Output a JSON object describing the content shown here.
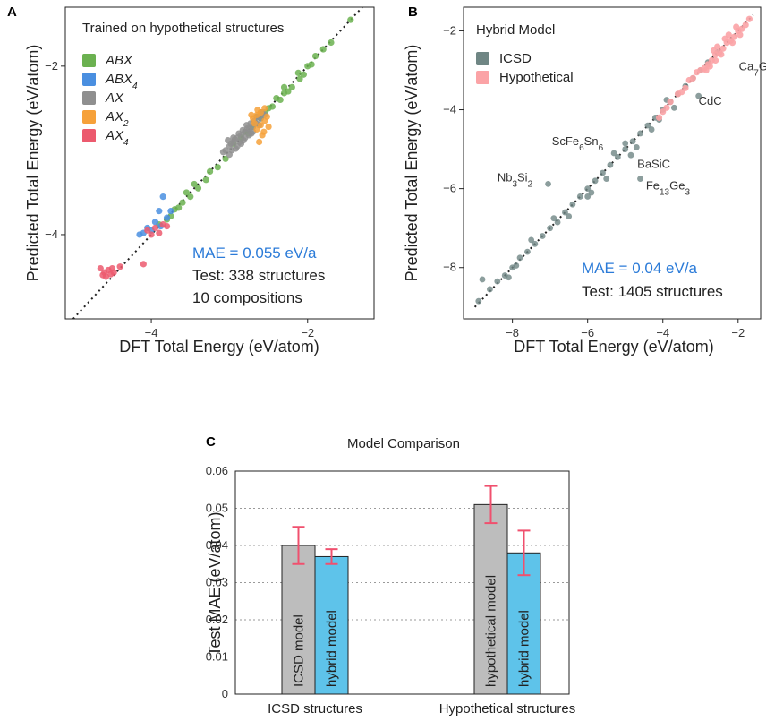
{
  "chart_data": [
    {
      "panel": "A",
      "type": "scatter",
      "title": "Trained on hypothetical structures",
      "xlabel": "DFT Total Energy (eV/atom)",
      "ylabel": "Predicted Total Energy (eV/atom)",
      "xlim": [
        -5.1,
        -1.15
      ],
      "ylim": [
        -5.0,
        -1.3
      ],
      "xticks": [
        {
          "v": -4,
          "label": "−4"
        },
        {
          "v": -2,
          "label": "−2"
        }
      ],
      "yticks": [
        {
          "v": -4,
          "label": "−4"
        },
        {
          "v": -2,
          "label": "−2"
        }
      ],
      "grid": false,
      "legend_position": "top-left",
      "stats": {
        "mae": "MAE = 0.055 eV/a",
        "test": "Test: 338 structures",
        "comp": "10 compositions"
      },
      "series": [
        {
          "name": "ABX",
          "sub": "",
          "color": "#6bb150",
          "points": [
            [
              -1.45,
              -1.45
            ],
            [
              -1.7,
              -1.72
            ],
            [
              -1.8,
              -1.8
            ],
            [
              -1.9,
              -1.88
            ],
            [
              -2.0,
              -2.0
            ],
            [
              -2.05,
              -2.1
            ],
            [
              -2.12,
              -2.08
            ],
            [
              -2.2,
              -2.25
            ],
            [
              -2.3,
              -2.32
            ],
            [
              -2.35,
              -2.4
            ],
            [
              -2.4,
              -2.38
            ],
            [
              -2.45,
              -2.48
            ],
            [
              -2.5,
              -2.5
            ],
            [
              -2.55,
              -2.55
            ],
            [
              -2.6,
              -2.62
            ],
            [
              -2.65,
              -2.6
            ],
            [
              -2.7,
              -2.72
            ],
            [
              -2.75,
              -2.8
            ],
            [
              -2.8,
              -2.78
            ],
            [
              -2.85,
              -2.85
            ],
            [
              -2.95,
              -2.92
            ],
            [
              -3.05,
              -3.1
            ],
            [
              -3.15,
              -3.2
            ],
            [
              -3.25,
              -3.25
            ],
            [
              -3.4,
              -3.45
            ],
            [
              -3.5,
              -3.55
            ],
            [
              -3.55,
              -3.5
            ],
            [
              -3.6,
              -3.62
            ],
            [
              -3.7,
              -3.7
            ],
            [
              -3.75,
              -3.78
            ],
            [
              -3.8,
              -3.82
            ],
            [
              -3.9,
              -3.88
            ],
            [
              -2.3,
              -2.25
            ],
            [
              -2.25,
              -2.3
            ],
            [
              -2.1,
              -2.15
            ],
            [
              -1.95,
              -1.98
            ],
            [
              -2.6,
              -2.55
            ],
            [
              -3.3,
              -3.35
            ],
            [
              -3.45,
              -3.4
            ],
            [
              -3.65,
              -3.68
            ]
          ]
        },
        {
          "name": "ABX",
          "sub": "4",
          "color": "#4a8fe0",
          "points": [
            [
              -3.85,
              -3.55
            ],
            [
              -3.9,
              -3.72
            ],
            [
              -3.95,
              -3.85
            ],
            [
              -4.05,
              -3.92
            ],
            [
              -4.1,
              -3.98
            ],
            [
              -4.15,
              -4.0
            ],
            [
              -3.8,
              -3.8
            ],
            [
              -3.75,
              -3.72
            ],
            [
              -4.0,
              -3.95
            ],
            [
              -3.88,
              -3.9
            ]
          ]
        },
        {
          "name": "AX",
          "sub": "",
          "color": "#8f8f8f",
          "points": [
            [
              -3.05,
              -3.0
            ],
            [
              -3.0,
              -2.95
            ],
            [
              -2.95,
              -2.9
            ],
            [
              -2.9,
              -2.85
            ],
            [
              -2.85,
              -2.82
            ],
            [
              -2.8,
              -2.78
            ],
            [
              -2.75,
              -2.75
            ],
            [
              -2.7,
              -2.72
            ],
            [
              -2.65,
              -2.68
            ],
            [
              -2.6,
              -2.62
            ],
            [
              -2.58,
              -2.55
            ],
            [
              -3.02,
              -2.88
            ],
            [
              -2.98,
              -2.92
            ],
            [
              -2.92,
              -2.98
            ],
            [
              -2.88,
              -2.8
            ],
            [
              -2.82,
              -2.88
            ],
            [
              -2.78,
              -2.7
            ],
            [
              -2.72,
              -2.8
            ],
            [
              -2.68,
              -2.65
            ],
            [
              -3.08,
              -3.02
            ],
            [
              -2.95,
              -2.85
            ],
            [
              -2.85,
              -2.92
            ],
            [
              -2.75,
              -2.82
            ],
            [
              -2.62,
              -2.7
            ],
            [
              -3.0,
              -3.05
            ],
            [
              -2.9,
              -2.95
            ],
            [
              -2.8,
              -2.85
            ],
            [
              -2.7,
              -2.78
            ],
            [
              -2.65,
              -2.6
            ],
            [
              -2.55,
              -2.58
            ],
            [
              -2.93,
              -2.87
            ],
            [
              -2.87,
              -2.9
            ],
            [
              -2.77,
              -2.74
            ],
            [
              -2.83,
              -2.76
            ],
            [
              -2.73,
              -2.68
            ],
            [
              -2.97,
              -3.0
            ]
          ]
        },
        {
          "name": "AX",
          "sub": "2",
          "color": "#f6a13a",
          "points": [
            [
              -2.55,
              -2.5
            ],
            [
              -2.6,
              -2.55
            ],
            [
              -2.65,
              -2.58
            ],
            [
              -2.7,
              -2.62
            ],
            [
              -2.55,
              -2.65
            ],
            [
              -2.6,
              -2.7
            ],
            [
              -2.65,
              -2.75
            ],
            [
              -2.58,
              -2.82
            ],
            [
              -2.62,
              -2.9
            ],
            [
              -2.68,
              -2.68
            ],
            [
              -2.52,
              -2.6
            ],
            [
              -2.64,
              -2.52
            ],
            [
              -2.72,
              -2.58
            ],
            [
              -2.5,
              -2.72
            ],
            [
              -2.56,
              -2.78
            ]
          ]
        },
        {
          "name": "AX",
          "sub": "4",
          "color": "#ec5a6e",
          "points": [
            [
              -4.6,
              -4.45
            ],
            [
              -4.55,
              -4.42
            ],
            [
              -4.5,
              -4.4
            ],
            [
              -4.62,
              -4.48
            ],
            [
              -4.58,
              -4.5
            ],
            [
              -4.52,
              -4.47
            ],
            [
              -4.48,
              -4.45
            ],
            [
              -4.65,
              -4.4
            ],
            [
              -4.4,
              -4.38
            ],
            [
              -4.1,
              -4.35
            ],
            [
              -4.0,
              -4.0
            ],
            [
              -3.95,
              -3.92
            ],
            [
              -3.85,
              -3.88
            ],
            [
              -3.8,
              -3.9
            ],
            [
              -4.05,
              -3.95
            ],
            [
              -3.9,
              -3.98
            ]
          ]
        }
      ]
    },
    {
      "panel": "B",
      "type": "scatter",
      "title": "Hybrid Model",
      "xlabel": "DFT Total Energy (eV/atom)",
      "ylabel": "Predicted Total Energy (eV/atom)",
      "xlim": [
        -9.3,
        -1.4
      ],
      "ylim": [
        -9.3,
        -1.4
      ],
      "xticks": [
        {
          "v": -8,
          "label": "−8"
        },
        {
          "v": -6,
          "label": "−6"
        },
        {
          "v": -4,
          "label": "−4"
        },
        {
          "v": -2,
          "label": "−2"
        }
      ],
      "yticks": [
        {
          "v": -8,
          "label": "−8"
        },
        {
          "v": -6,
          "label": "−6"
        },
        {
          "v": -4,
          "label": "−4"
        },
        {
          "v": -2,
          "label": "−2"
        }
      ],
      "grid": false,
      "legend_position": "top-left",
      "stats": {
        "mae": "MAE = 0.04 eV/a",
        "test": "Test: 1405 structures"
      },
      "series": [
        {
          "name": "ICSD",
          "color": "#6f8684",
          "points": [
            [
              -8.9,
              -8.85
            ],
            [
              -8.8,
              -8.3
            ],
            [
              -8.6,
              -8.55
            ],
            [
              -8.4,
              -8.35
            ],
            [
              -8.2,
              -8.2
            ],
            [
              -8.0,
              -8.0
            ],
            [
              -7.9,
              -7.95
            ],
            [
              -7.8,
              -7.75
            ],
            [
              -7.6,
              -7.6
            ],
            [
              -7.4,
              -7.4
            ],
            [
              -7.2,
              -7.2
            ],
            [
              -7.0,
              -7.0
            ],
            [
              -6.8,
              -6.85
            ],
            [
              -6.6,
              -6.6
            ],
            [
              -6.4,
              -6.4
            ],
            [
              -6.2,
              -6.2
            ],
            [
              -6.0,
              -6.0
            ],
            [
              -5.8,
              -5.8
            ],
            [
              -5.6,
              -5.6
            ],
            [
              -5.4,
              -5.4
            ],
            [
              -5.2,
              -5.2
            ],
            [
              -5.0,
              -5.0
            ],
            [
              -4.8,
              -4.8
            ],
            [
              -4.6,
              -4.6
            ],
            [
              -4.4,
              -4.4
            ],
            [
              -4.2,
              -4.2
            ],
            [
              -4.0,
              -4.0
            ],
            [
              -3.8,
              -3.8
            ],
            [
              -3.6,
              -3.6
            ],
            [
              -3.4,
              -3.4
            ],
            [
              -3.2,
              -3.2
            ],
            [
              -3.0,
              -3.0
            ],
            [
              -2.8,
              -2.8
            ],
            [
              -7.05,
              -5.88
            ],
            [
              -4.85,
              -5.15
            ],
            [
              -4.6,
              -5.75
            ],
            [
              -3.05,
              -3.65
            ],
            [
              -2.55,
              -2.55
            ],
            [
              -5.0,
              -4.85
            ],
            [
              -6.5,
              -6.7
            ],
            [
              -7.5,
              -7.3
            ],
            [
              -5.5,
              -5.75
            ],
            [
              -4.3,
              -4.5
            ],
            [
              -3.7,
              -3.95
            ],
            [
              -6.0,
              -6.2
            ],
            [
              -8.1,
              -8.25
            ],
            [
              -5.3,
              -5.1
            ],
            [
              -4.1,
              -4.25
            ],
            [
              -6.9,
              -6.75
            ],
            [
              -5.9,
              -6.1
            ],
            [
              -4.7,
              -4.95
            ],
            [
              -3.9,
              -3.75
            ]
          ]
        },
        {
          "name": "Hypothetical",
          "color": "#fba3a6",
          "points": [
            [
              -1.7,
              -1.7
            ],
            [
              -1.8,
              -1.85
            ],
            [
              -1.9,
              -1.95
            ],
            [
              -2.0,
              -2.0
            ],
            [
              -2.1,
              -2.15
            ],
            [
              -2.2,
              -2.25
            ],
            [
              -2.3,
              -2.3
            ],
            [
              -2.4,
              -2.45
            ],
            [
              -2.5,
              -2.55
            ],
            [
              -2.6,
              -2.6
            ],
            [
              -2.7,
              -2.75
            ],
            [
              -2.8,
              -2.85
            ],
            [
              -2.9,
              -2.95
            ],
            [
              -3.0,
              -3.0
            ],
            [
              -3.2,
              -3.2
            ],
            [
              -3.4,
              -3.45
            ],
            [
              -3.6,
              -3.6
            ],
            [
              -3.8,
              -3.8
            ],
            [
              -4.0,
              -4.05
            ],
            [
              -2.25,
              -2.1
            ],
            [
              -2.45,
              -2.6
            ],
            [
              -2.65,
              -2.5
            ],
            [
              -2.85,
              -3.0
            ],
            [
              -3.1,
              -3.05
            ],
            [
              -2.35,
              -2.2
            ],
            [
              -2.15,
              -2.3
            ],
            [
              -2.05,
              -1.9
            ],
            [
              -2.55,
              -2.4
            ],
            [
              -2.75,
              -2.9
            ],
            [
              -3.3,
              -3.25
            ],
            [
              -3.5,
              -3.55
            ],
            [
              -3.9,
              -3.95
            ],
            [
              -4.1,
              -4.2
            ],
            [
              -1.95,
              -2.1
            ],
            [
              -2.6,
              -2.75
            ]
          ]
        }
      ],
      "annotations": [
        {
          "base": "Ca",
          "sub": "7",
          "rest": "Ge",
          "x": -1.98,
          "y": -3.0
        },
        {
          "base": "CdC",
          "sub": "",
          "rest": "",
          "x": -3.05,
          "y": -3.88
        },
        {
          "base": "ScFe",
          "sub": "6",
          "rest": "Sn",
          "sub2": "6",
          "x": -6.95,
          "y": -4.9
        },
        {
          "base": "BaSiC",
          "sub": "",
          "rest": "",
          "x": -4.68,
          "y": -5.48
        },
        {
          "base": "Nb",
          "sub": "3",
          "rest": "Si",
          "sub2": "2",
          "x": -8.4,
          "y": -5.82
        },
        {
          "base": "Fe",
          "sub": "13",
          "rest": "Ge",
          "sub2": "3",
          "x": -4.45,
          "y": -6.02
        }
      ]
    },
    {
      "panel": "C",
      "type": "bar",
      "title": "Model Comparison",
      "ylabel": "Test MAE (eV/atom)",
      "ylim": [
        0,
        0.06
      ],
      "yticks": [
        "0",
        "0.01",
        "0.02",
        "0.03",
        "0.04",
        "0.05",
        "0.06"
      ],
      "grid": true,
      "categories": [
        "ICSD structures",
        "Hypothetical structures"
      ],
      "bars": [
        {
          "category": "ICSD structures",
          "label": "ICSD model",
          "value": 0.04,
          "err": 0.005,
          "color": "#bdbdbd"
        },
        {
          "category": "ICSD structures",
          "label": "hybrid model",
          "value": 0.037,
          "err": 0.002,
          "color": "#5ec3ea"
        },
        {
          "category": "Hypothetical structures",
          "label": "hypothetical model",
          "value": 0.051,
          "err": 0.005,
          "color": "#bdbdbd"
        },
        {
          "category": "Hypothetical structures",
          "label": "hybrid model",
          "value": 0.038,
          "err": 0.006,
          "color": "#5ec3ea"
        }
      ],
      "error_color": "#f0506e"
    }
  ]
}
